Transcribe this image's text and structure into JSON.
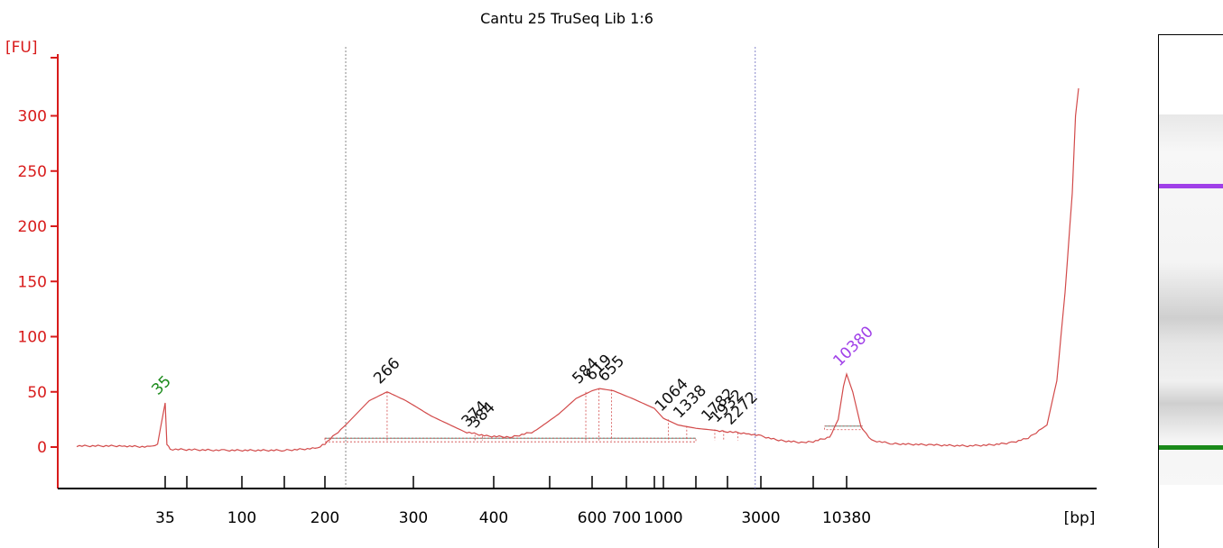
{
  "colors": {
    "axis": "#d81b1b",
    "trace": "#d24a4a",
    "marker_lower": "#1a8a1a",
    "marker_upper": "#a040e8",
    "baseline": "#5a9a8a",
    "cursor_left": "#888888",
    "cursor_right": "#8888cc"
  },
  "chart_data": {
    "type": "line",
    "title": "Cantu 25 TruSeq Lib 1:6",
    "ylabel": "[FU]",
    "xlabel": "[bp]",
    "ylim": [
      -38,
      350
    ],
    "y_ticks": [
      0,
      50,
      100,
      150,
      200,
      250,
      300
    ],
    "x_scale": "nonlinear (migration time)",
    "x_ticks": [
      {
        "bp": 35,
        "label": "35"
      },
      {
        "bp": 50,
        "label": ""
      },
      {
        "bp": 100,
        "label": "100"
      },
      {
        "bp": 150,
        "label": ""
      },
      {
        "bp": 200,
        "label": "200"
      },
      {
        "bp": 300,
        "label": "300"
      },
      {
        "bp": 400,
        "label": "400"
      },
      {
        "bp": 500,
        "label": ""
      },
      {
        "bp": 600,
        "label": "600"
      },
      {
        "bp": 700,
        "label": "700"
      },
      {
        "bp": 800,
        "label": ""
      },
      {
        "bp": 1000,
        "label": "1000"
      },
      {
        "bp": 1500,
        "label": ""
      },
      {
        "bp": 2000,
        "label": ""
      },
      {
        "bp": 3000,
        "label": "3000"
      },
      {
        "bp": 7000,
        "label": ""
      },
      {
        "bp": 10380,
        "label": "10380"
      }
    ],
    "series": [
      {
        "points": [
          [
            25,
            1
          ],
          [
            30,
            1
          ],
          [
            33,
            0
          ],
          [
            34,
            3
          ],
          [
            35,
            40
          ],
          [
            36,
            3
          ],
          [
            38,
            -2
          ],
          [
            80,
            -3
          ],
          [
            150,
            -3
          ],
          [
            190,
            -1
          ],
          [
            200,
            3
          ],
          [
            220,
            20
          ],
          [
            245,
            42
          ],
          [
            266,
            50
          ],
          [
            290,
            42
          ],
          [
            320,
            28
          ],
          [
            360,
            14
          ],
          [
            390,
            10
          ],
          [
            430,
            9
          ],
          [
            470,
            14
          ],
          [
            520,
            30
          ],
          [
            560,
            44
          ],
          [
            600,
            51
          ],
          [
            620,
            53
          ],
          [
            660,
            51
          ],
          [
            720,
            44
          ],
          [
            800,
            35
          ],
          [
            1000,
            26
          ],
          [
            1200,
            20
          ],
          [
            1500,
            17
          ],
          [
            2000,
            14
          ],
          [
            2600,
            12
          ],
          [
            3000,
            10
          ],
          [
            4000,
            6
          ],
          [
            6000,
            4
          ],
          [
            7000,
            5
          ],
          [
            8500,
            9
          ],
          [
            9400,
            25
          ],
          [
            10000,
            55
          ],
          [
            10380,
            66
          ],
          [
            10800,
            50
          ],
          [
            11400,
            18
          ],
          [
            12200,
            6
          ],
          [
            14000,
            3
          ],
          [
            18000,
            2
          ],
          [
            24000,
            1
          ],
          [
            30000,
            2
          ],
          [
            36000,
            4
          ],
          [
            42000,
            8
          ],
          [
            50000,
            20
          ],
          [
            60000,
            60
          ],
          [
            70000,
            140
          ],
          [
            80000,
            230
          ],
          [
            85000,
            300
          ],
          [
            90000,
            325
          ]
        ]
      }
    ],
    "peaks": [
      {
        "label": "35",
        "bp": 35,
        "fu": 40,
        "marker": "lower"
      },
      {
        "label": "266",
        "bp": 266,
        "fu": 50
      },
      {
        "label": "374",
        "bp": 374,
        "fu": 11
      },
      {
        "label": "384",
        "bp": 384,
        "fu": 10
      },
      {
        "label": "584",
        "bp": 584,
        "fu": 50
      },
      {
        "label": "619",
        "bp": 619,
        "fu": 53
      },
      {
        "label": "655",
        "bp": 655,
        "fu": 52
      },
      {
        "label": "1064",
        "bp": 1064,
        "fu": 25
      },
      {
        "label": "1338",
        "bp": 1338,
        "fu": 19
      },
      {
        "label": "1782",
        "bp": 1782,
        "fu": 16
      },
      {
        "label": "1932",
        "bp": 1932,
        "fu": 15
      },
      {
        "label": "2272",
        "bp": 2272,
        "fu": 13
      },
      {
        "label": "10380",
        "bp": 10380,
        "fu": 66,
        "marker": "upper"
      }
    ],
    "cursors_bp": [
      220,
      2800
    ],
    "baselines": [
      {
        "from_bp": 200,
        "to_bp": 1500,
        "fu": 8
      },
      {
        "from_bp": 8000,
        "to_bp": 11500,
        "fu": 19
      }
    ]
  },
  "gel": {
    "marker_upper_band_level": 0.29,
    "marker_lower_band_level": 0.8
  }
}
